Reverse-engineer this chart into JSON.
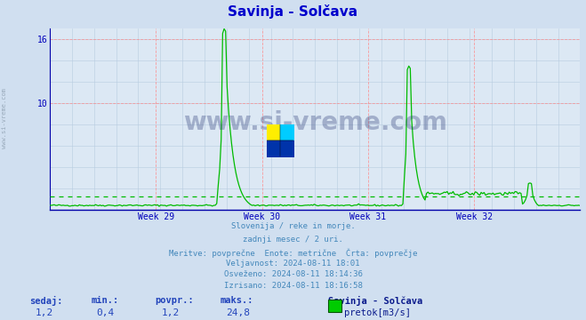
{
  "title": "Savinja - Solčava",
  "title_color": "#0000cc",
  "bg_color": "#d0dff0",
  "plot_bg_color": "#dce8f4",
  "line_color": "#00bb00",
  "avg_line_color": "#00bb00",
  "grid_color_major": "#ff8888",
  "grid_color_minor": "#b8cce0",
  "axis_color": "#0000bb",
  "ytick_vals": [
    10,
    16
  ],
  "ylim_max": 17.0,
  "week_labels": [
    "Week 29",
    "Week 30",
    "Week 31",
    "Week 32"
  ],
  "avg_value": 1.2,
  "text_lines": [
    "Slovenija / reke in morje.",
    "zadnji mesec / 2 uri.",
    "Meritve: povprečne  Enote: metrične  Črta: povprečje",
    "Veljavnost: 2024-08-11 18:01",
    "Osveženo: 2024-08-11 18:14:36",
    "Izrisano: 2024-08-11 18:16:58"
  ],
  "footer_labels": [
    "sedaj:",
    "min.:",
    "povpr.:",
    "maks.:"
  ],
  "footer_values": [
    "1,2",
    "0,4",
    "1,2",
    "24,8"
  ],
  "station_name": "Savinja - Solčava",
  "legend_label": "pretok[m3/s]",
  "watermark": "www.si-vreme.com",
  "sidebar_text": "www.si-vreme.com"
}
